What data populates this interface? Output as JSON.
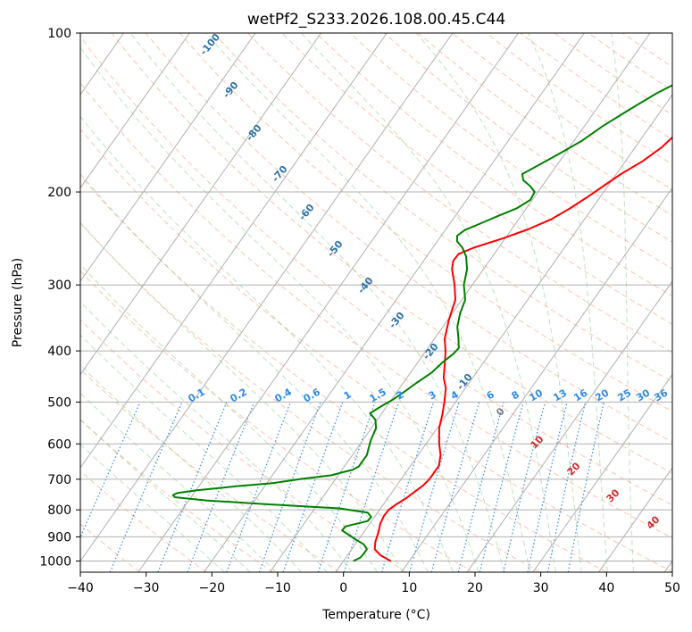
{
  "chart_data": {
    "type": "line",
    "title": "wetPf2_S233.2026.108.00.45.C44",
    "xlabel": "Temperature (°C)",
    "ylabel": "Pressure (hPa)",
    "xlim": [
      -40,
      50
    ],
    "ylim": [
      1050,
      100
    ],
    "y_scale": "log",
    "grid": true,
    "x_ticks": [
      -40,
      -30,
      -20,
      -10,
      0,
      10,
      20,
      30,
      40,
      50
    ],
    "y_ticks": [
      1000,
      900,
      800,
      700,
      600,
      500,
      400,
      300,
      200,
      100
    ],
    "series": [
      {
        "color": "#ff0000",
        "points": [
          [
            1000,
            7.2
          ],
          [
            975,
            5.0
          ],
          [
            950,
            3.5
          ],
          [
            920,
            2.8
          ],
          [
            880,
            2.2
          ],
          [
            850,
            1.6
          ],
          [
            820,
            1.3
          ],
          [
            800,
            1.4
          ],
          [
            780,
            2.0
          ],
          [
            760,
            2.8
          ],
          [
            740,
            3.4
          ],
          [
            720,
            4.0
          ],
          [
            700,
            4.3
          ],
          [
            660,
            4.3
          ],
          [
            630,
            3.4
          ],
          [
            600,
            2.0
          ],
          [
            560,
            0.3
          ],
          [
            530,
            -0.6
          ],
          [
            500,
            -1.7
          ],
          [
            470,
            -3.0
          ],
          [
            450,
            -4.4
          ],
          [
            420,
            -5.9
          ],
          [
            400,
            -7.0
          ],
          [
            380,
            -8.4
          ],
          [
            350,
            -9.8
          ],
          [
            320,
            -11.0
          ],
          [
            300,
            -12.7
          ],
          [
            280,
            -14.8
          ],
          [
            270,
            -15.5
          ],
          [
            262,
            -15.4
          ],
          [
            255,
            -13.8
          ],
          [
            245,
            -10.4
          ],
          [
            235,
            -7.4
          ],
          [
            225,
            -5.0
          ],
          [
            215,
            -3.4
          ],
          [
            205,
            -2.0
          ],
          [
            195,
            -0.7
          ],
          [
            185,
            0.7
          ],
          [
            175,
            2.6
          ],
          [
            165,
            4.0
          ],
          [
            155,
            4.8
          ],
          [
            145,
            5.7
          ],
          [
            135,
            6.9
          ],
          [
            125,
            8.1
          ],
          [
            115,
            9.6
          ],
          [
            108,
            10.4
          ],
          [
            100,
            11.8
          ]
        ]
      },
      {
        "color": "#008000",
        "points": [
          [
            1000,
            1.5
          ],
          [
            985,
            2.2
          ],
          [
            970,
            2.3
          ],
          [
            950,
            2.3
          ],
          [
            930,
            1.3
          ],
          [
            910,
            -0.5
          ],
          [
            890,
            -2.2
          ],
          [
            875,
            -3.5
          ],
          [
            860,
            -3.4
          ],
          [
            840,
            -0.6
          ],
          [
            825,
            -0.5
          ],
          [
            810,
            -1.5
          ],
          [
            795,
            -6.3
          ],
          [
            780,
            -18.3
          ],
          [
            768,
            -27.2
          ],
          [
            757,
            -32.5
          ],
          [
            750,
            -33.0
          ],
          [
            743,
            -32.5
          ],
          [
            735,
            -30.0
          ],
          [
            722,
            -24.4
          ],
          [
            712,
            -19.1
          ],
          [
            700,
            -15.4
          ],
          [
            688,
            -11.0
          ],
          [
            680,
            -9.8
          ],
          [
            672,
            -8.4
          ],
          [
            662,
            -7.8
          ],
          [
            645,
            -7.8
          ],
          [
            630,
            -7.8
          ],
          [
            610,
            -8.3
          ],
          [
            590,
            -8.8
          ],
          [
            560,
            -9.3
          ],
          [
            540,
            -10.3
          ],
          [
            525,
            -11.8
          ],
          [
            510,
            -10.9
          ],
          [
            495,
            -9.8
          ],
          [
            480,
            -9.0
          ],
          [
            460,
            -8.0
          ],
          [
            440,
            -6.8
          ],
          [
            420,
            -6.2
          ],
          [
            405,
            -5.5
          ],
          [
            395,
            -5.3
          ],
          [
            380,
            -6.3
          ],
          [
            360,
            -7.8
          ],
          [
            340,
            -8.8
          ],
          [
            320,
            -9.5
          ],
          [
            300,
            -11.3
          ],
          [
            280,
            -12.5
          ],
          [
            265,
            -14.0
          ],
          [
            255,
            -15.5
          ],
          [
            248,
            -17.0
          ],
          [
            242,
            -17.6
          ],
          [
            236,
            -17.0
          ],
          [
            230,
            -15.5
          ],
          [
            222,
            -13.5
          ],
          [
            215,
            -11.5
          ],
          [
            207,
            -10.3
          ],
          [
            200,
            -10.5
          ],
          [
            195,
            -11.8
          ],
          [
            190,
            -13.5
          ],
          [
            185,
            -14.3
          ],
          [
            178,
            -12.8
          ],
          [
            170,
            -11.0
          ],
          [
            160,
            -8.8
          ],
          [
            150,
            -7.2
          ],
          [
            140,
            -5.0
          ],
          [
            130,
            -2.5
          ],
          [
            120,
            1.0
          ],
          [
            110,
            6.0
          ],
          [
            100,
            11.0
          ]
        ]
      }
    ],
    "mixing_ratio_labels": [
      "0.1",
      "0.2",
      "0.4",
      "0.6",
      "1",
      "1.5",
      "2",
      "3",
      "4",
      "6",
      "8",
      "10",
      "13",
      "16",
      "20",
      "25",
      "30",
      "36"
    ],
    "dry_adiabat_labels": [
      "-100",
      "-90",
      "-80",
      "-70",
      "-60",
      "-50",
      "-40",
      "-30",
      "-20",
      "-10"
    ],
    "moist_adiabat_labels": [
      "0",
      "10",
      "20",
      "30",
      "40"
    ]
  }
}
